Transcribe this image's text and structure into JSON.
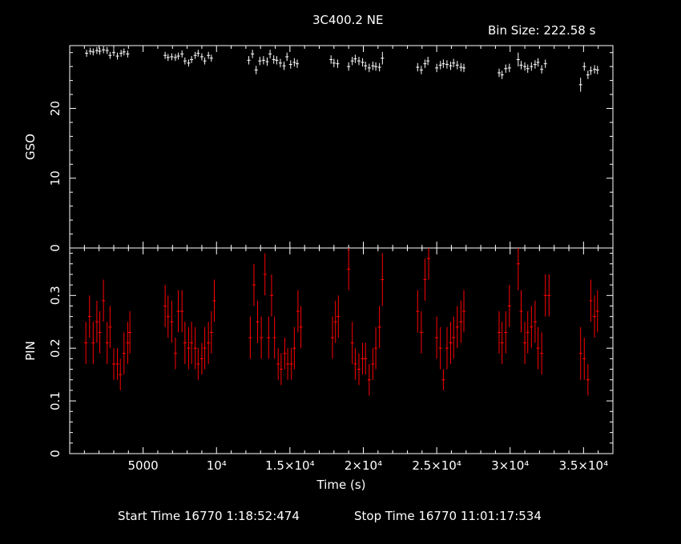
{
  "title": "3C400.2 NE",
  "bin_size_label": "Bin Size: 222.58 s",
  "footer": {
    "start_label": "Start Time 16770  1:18:52:474",
    "stop_label": "Stop Time 16770 11:01:17:534"
  },
  "colors": {
    "background": "#000000",
    "axes": "#ffffff",
    "gso": "#ffffff",
    "pin": "#ff0000"
  },
  "chart_data": [
    {
      "type": "scatter",
      "panel": "top",
      "ylabel": "GSO",
      "xlim": [
        0,
        37000
      ],
      "ylim": [
        0,
        29
      ],
      "yticks": [
        0,
        10,
        20
      ],
      "x_tick_labels": [],
      "grid": false,
      "series": [
        {
          "color": "#ffffff",
          "x_err": 111,
          "points": [
            [
              1150,
              27.9,
              0.5
            ],
            [
              1400,
              28.2,
              0.5
            ],
            [
              1600,
              28.1,
              0.5
            ],
            [
              1850,
              28.3,
              0.5
            ],
            [
              2050,
              28.2,
              0.5
            ],
            [
              2300,
              28.4,
              0.5
            ],
            [
              2550,
              28.3,
              0.5
            ],
            [
              2750,
              27.6,
              0.5
            ],
            [
              3000,
              28.0,
              0.5
            ],
            [
              3250,
              27.5,
              0.5
            ],
            [
              3500,
              27.9,
              0.5
            ],
            [
              3700,
              28.1,
              0.5
            ],
            [
              3950,
              27.8,
              0.5
            ],
            [
              6500,
              27.6,
              0.5
            ],
            [
              6700,
              27.3,
              0.5
            ],
            [
              6950,
              27.4,
              0.5
            ],
            [
              7200,
              27.3,
              0.5
            ],
            [
              7400,
              27.5,
              0.5
            ],
            [
              7650,
              27.8,
              0.5
            ],
            [
              7850,
              26.8,
              0.5
            ],
            [
              8100,
              26.5,
              0.5
            ],
            [
              8300,
              27.0,
              0.5
            ],
            [
              8550,
              27.6,
              0.5
            ],
            [
              8750,
              27.9,
              0.5
            ],
            [
              9000,
              27.4,
              0.5
            ],
            [
              9200,
              26.8,
              0.5
            ],
            [
              9450,
              27.6,
              0.5
            ],
            [
              9650,
              27.2,
              0.5
            ],
            [
              12200,
              26.9,
              0.6
            ],
            [
              12450,
              27.8,
              0.6
            ],
            [
              12700,
              25.5,
              0.6
            ],
            [
              12950,
              26.8,
              0.6
            ],
            [
              13200,
              26.9,
              0.6
            ],
            [
              13450,
              26.7,
              0.6
            ],
            [
              13650,
              27.8,
              0.6
            ],
            [
              13900,
              27.0,
              0.6
            ],
            [
              14100,
              26.9,
              0.6
            ],
            [
              14350,
              26.5,
              0.6
            ],
            [
              14600,
              26.1,
              0.6
            ],
            [
              14800,
              27.4,
              0.6
            ],
            [
              15050,
              26.3,
              0.6
            ],
            [
              15300,
              26.6,
              0.6
            ],
            [
              15500,
              26.4,
              0.6
            ],
            [
              17800,
              27.0,
              0.6
            ],
            [
              18000,
              26.5,
              0.6
            ],
            [
              18250,
              26.4,
              0.6
            ],
            [
              19000,
              26.0,
              0.6
            ],
            [
              19250,
              26.8,
              0.6
            ],
            [
              19450,
              27.1,
              0.6
            ],
            [
              19700,
              26.8,
              0.6
            ],
            [
              19950,
              26.6,
              0.6
            ],
            [
              20150,
              26.1,
              0.6
            ],
            [
              20400,
              25.8,
              0.6
            ],
            [
              20650,
              26.1,
              0.6
            ],
            [
              20850,
              26.0,
              0.6
            ],
            [
              21100,
              25.9,
              0.6
            ],
            [
              21300,
              27.2,
              0.9
            ],
            [
              23700,
              25.9,
              0.6
            ],
            [
              23950,
              25.5,
              0.6
            ],
            [
              24200,
              26.4,
              0.6
            ],
            [
              24400,
              26.8,
              0.6
            ],
            [
              25000,
              25.8,
              0.6
            ],
            [
              25250,
              26.2,
              0.6
            ],
            [
              25450,
              26.4,
              0.6
            ],
            [
              25700,
              26.3,
              0.6
            ],
            [
              25950,
              26.1,
              0.6
            ],
            [
              26150,
              26.5,
              0.6
            ],
            [
              26400,
              26.2,
              0.6
            ],
            [
              26650,
              25.9,
              0.6
            ],
            [
              26850,
              25.8,
              0.6
            ],
            [
              29250,
              25.1,
              0.6
            ],
            [
              29450,
              24.8,
              0.6
            ],
            [
              29700,
              25.7,
              0.6
            ],
            [
              29950,
              25.8,
              0.6
            ],
            [
              30550,
              27.0,
              1.0
            ],
            [
              30750,
              26.2,
              0.6
            ],
            [
              31000,
              26.0,
              0.6
            ],
            [
              31200,
              25.7,
              0.6
            ],
            [
              31450,
              26.0,
              0.6
            ],
            [
              31700,
              26.3,
              0.6
            ],
            [
              31900,
              26.6,
              0.6
            ],
            [
              32150,
              25.6,
              0.6
            ],
            [
              32400,
              26.4,
              0.6
            ],
            [
              34800,
              23.4,
              1.0
            ],
            [
              35050,
              26.0,
              0.6
            ],
            [
              35300,
              24.8,
              0.6
            ],
            [
              35500,
              25.4,
              0.6
            ],
            [
              35750,
              25.6,
              0.6
            ],
            [
              35950,
              25.5,
              0.6
            ]
          ]
        }
      ]
    },
    {
      "type": "scatter",
      "panel": "bottom",
      "ylabel": "PIN",
      "xlabel": "Time (s)",
      "xlim": [
        0,
        37000
      ],
      "ylim": [
        0,
        0.39
      ],
      "yticks": [
        0,
        0.1,
        0.2,
        0.3
      ],
      "x_tick_labels": [
        "5000",
        "10⁴",
        "1.5×10⁴",
        "2×10⁴",
        "2.5×10⁴",
        "3×10⁴",
        "3.5×10⁴"
      ],
      "x_tick_values": [
        5000,
        10000,
        15000,
        20000,
        25000,
        30000,
        35000
      ],
      "grid": false,
      "series": [
        {
          "color": "#ff0000",
          "x_err": 111,
          "points": [
            [
              1100,
              0.21,
              0.04
            ],
            [
              1350,
              0.26,
              0.04
            ],
            [
              1600,
              0.21,
              0.04
            ],
            [
              1850,
              0.25,
              0.04
            ],
            [
              2050,
              0.23,
              0.04
            ],
            [
              2300,
              0.29,
              0.04
            ],
            [
              2550,
              0.21,
              0.04
            ],
            [
              2750,
              0.24,
              0.04
            ],
            [
              3000,
              0.17,
              0.03
            ],
            [
              3250,
              0.17,
              0.03
            ],
            [
              3450,
              0.15,
              0.03
            ],
            [
              3700,
              0.19,
              0.04
            ],
            [
              3950,
              0.21,
              0.04
            ],
            [
              4100,
              0.23,
              0.04
            ],
            [
              6500,
              0.28,
              0.04
            ],
            [
              6700,
              0.26,
              0.04
            ],
            [
              6950,
              0.25,
              0.04
            ],
            [
              7200,
              0.19,
              0.03
            ],
            [
              7400,
              0.27,
              0.04
            ],
            [
              7650,
              0.27,
              0.04
            ],
            [
              7850,
              0.21,
              0.04
            ],
            [
              8100,
              0.2,
              0.04
            ],
            [
              8300,
              0.21,
              0.04
            ],
            [
              8550,
              0.2,
              0.04
            ],
            [
              8750,
              0.17,
              0.03
            ],
            [
              9000,
              0.18,
              0.03
            ],
            [
              9200,
              0.2,
              0.04
            ],
            [
              9450,
              0.21,
              0.04
            ],
            [
              9650,
              0.23,
              0.04
            ],
            [
              9850,
              0.29,
              0.04
            ],
            [
              12300,
              0.22,
              0.04
            ],
            [
              12550,
              0.32,
              0.04
            ],
            [
              12800,
              0.25,
              0.04
            ],
            [
              13050,
              0.22,
              0.04
            ],
            [
              13300,
              0.34,
              0.04
            ],
            [
              13550,
              0.22,
              0.04
            ],
            [
              13750,
              0.3,
              0.04
            ],
            [
              13950,
              0.22,
              0.04
            ],
            [
              14200,
              0.17,
              0.03
            ],
            [
              14400,
              0.16,
              0.03
            ],
            [
              14650,
              0.19,
              0.03
            ],
            [
              14850,
              0.17,
              0.03
            ],
            [
              15100,
              0.17,
              0.03
            ],
            [
              15300,
              0.2,
              0.04
            ],
            [
              15550,
              0.27,
              0.04
            ],
            [
              15750,
              0.24,
              0.04
            ],
            [
              17900,
              0.22,
              0.04
            ],
            [
              18100,
              0.25,
              0.04
            ],
            [
              18300,
              0.26,
              0.04
            ],
            [
              19000,
              0.35,
              0.04
            ],
            [
              19250,
              0.21,
              0.04
            ],
            [
              19450,
              0.17,
              0.03
            ],
            [
              19700,
              0.16,
              0.03
            ],
            [
              19950,
              0.18,
              0.03
            ],
            [
              20150,
              0.18,
              0.03
            ],
            [
              20400,
              0.14,
              0.03
            ],
            [
              20650,
              0.17,
              0.03
            ],
            [
              20850,
              0.2,
              0.04
            ],
            [
              21100,
              0.24,
              0.04
            ],
            [
              21300,
              0.33,
              0.05
            ],
            [
              23700,
              0.27,
              0.04
            ],
            [
              23950,
              0.23,
              0.04
            ],
            [
              24200,
              0.33,
              0.04
            ],
            [
              24450,
              0.37,
              0.04
            ],
            [
              25000,
              0.22,
              0.04
            ],
            [
              25250,
              0.2,
              0.04
            ],
            [
              25450,
              0.14,
              0.02
            ],
            [
              25700,
              0.2,
              0.04
            ],
            [
              25950,
              0.21,
              0.04
            ],
            [
              26150,
              0.22,
              0.04
            ],
            [
              26400,
              0.24,
              0.04
            ],
            [
              26650,
              0.25,
              0.04
            ],
            [
              26850,
              0.27,
              0.04
            ],
            [
              29250,
              0.23,
              0.04
            ],
            [
              29450,
              0.21,
              0.04
            ],
            [
              29700,
              0.23,
              0.04
            ],
            [
              29950,
              0.28,
              0.04
            ],
            [
              30550,
              0.36,
              0.05
            ],
            [
              30750,
              0.27,
              0.04
            ],
            [
              31000,
              0.21,
              0.04
            ],
            [
              31200,
              0.23,
              0.04
            ],
            [
              31450,
              0.24,
              0.04
            ],
            [
              31700,
              0.25,
              0.04
            ],
            [
              31900,
              0.2,
              0.04
            ],
            [
              32150,
              0.19,
              0.04
            ],
            [
              32400,
              0.3,
              0.04
            ],
            [
              32650,
              0.3,
              0.04
            ],
            [
              34800,
              0.19,
              0.05
            ],
            [
              35050,
              0.18,
              0.04
            ],
            [
              35300,
              0.14,
              0.03
            ],
            [
              35500,
              0.29,
              0.04
            ],
            [
              35750,
              0.26,
              0.04
            ],
            [
              35950,
              0.27,
              0.04
            ]
          ]
        }
      ]
    }
  ]
}
